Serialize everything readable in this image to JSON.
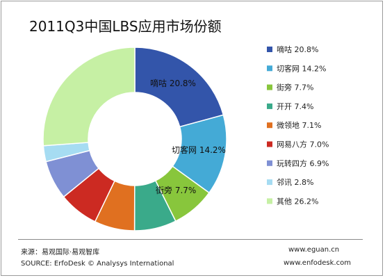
{
  "chart_data": {
    "type": "pie",
    "title": "2011Q3中国LBS应用市场份额",
    "categories": [
      "嘀咕",
      "切客网",
      "街旁",
      "开开",
      "微领地",
      "网易八方",
      "玩转四方",
      "邻讯",
      "其他"
    ],
    "values": [
      20.8,
      14.2,
      7.7,
      7.4,
      7.1,
      7.0,
      6.9,
      2.8,
      26.2
    ],
    "value_labels": [
      "20.8%",
      "14.2%",
      "7.7%",
      "7.4%",
      "7.1%",
      "7.0%",
      "6.9%",
      "2.8%",
      "26.2%"
    ],
    "colors": [
      "#3355aa",
      "#44aad6",
      "#88c63c",
      "#3aaa8a",
      "#e07020",
      "#cc2a22",
      "#7f90d4",
      "#a6dcf2",
      "#c6f0a4"
    ],
    "slice_labels_shown": [
      "嘀咕 20.8%",
      "切客网 14.2%",
      "街旁 7.7%"
    ],
    "legend_position": "right"
  },
  "footer": {
    "source_cn": "来源：易观国际·易观智库",
    "source_en": "SOURCE: ErfoDesk © Analysys International",
    "url1": "www.eguan.cn",
    "url2": "www.enfodesk.com"
  }
}
